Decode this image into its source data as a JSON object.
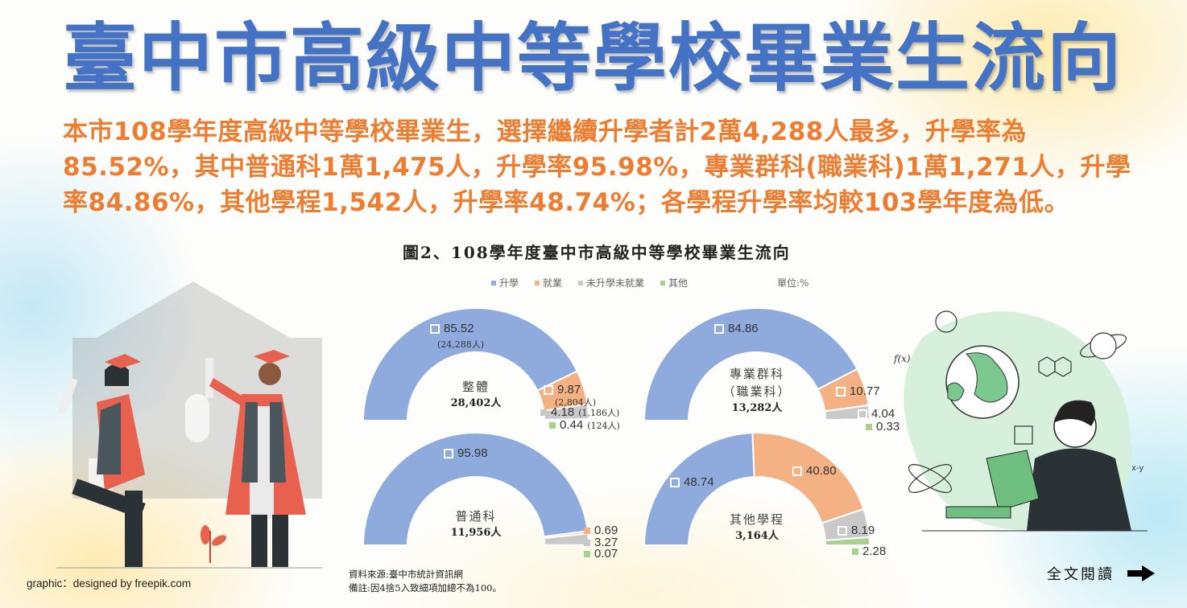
{
  "header": {
    "title": "臺中市高級中等學校畢業生流向"
  },
  "summary": {
    "text": "本市108學年度高級中等學校畢業生，選擇繼續升學者計2萬4,288人最多，升學率為85.52%，其中普通科1萬1,475人，升學率95.98%，專業群科(職業科)1萬1,271人，升學率84.86%，其他學程1,542人，升學率48.74%；各學程升學率均較103學年度為低。"
  },
  "figure": {
    "title": "圖2、108學年度臺中市高級中等學校畢業生流向",
    "unit": "單位:%",
    "legend": [
      {
        "label": "升學",
        "color": "#8faadc"
      },
      {
        "label": "就業",
        "color": "#f4b183"
      },
      {
        "label": "未升學未就業",
        "color": "#c9c9c9"
      },
      {
        "label": "其他",
        "color": "#a9d18e"
      }
    ],
    "source": "資料來源:臺中市統計資訊網",
    "note": "備註:因4捨5入致細項加總不為100。"
  },
  "chart_data": {
    "type": "pie",
    "subtype": "half-donut",
    "title": "圖2、108學年度臺中市高級中等學校畢業生流向",
    "unit": "%",
    "categories": [
      "升學",
      "就業",
      "未升學未就業",
      "其他"
    ],
    "colors": [
      "#8faadc",
      "#f4b183",
      "#c9c9c9",
      "#a9d18e"
    ],
    "legend_position": "top",
    "charts": [
      {
        "name": "整體",
        "total_label": "28,402人",
        "values": [
          85.52,
          9.87,
          4.18,
          0.44
        ],
        "counts": [
          "24,288人",
          "2,804人",
          "1,186人",
          "124人"
        ]
      },
      {
        "name": "專業群科（職業科）",
        "total_label": "13,282人",
        "values": [
          84.86,
          10.77,
          4.04,
          0.33
        ]
      },
      {
        "name": "普通科",
        "total_label": "11,956人",
        "values": [
          95.98,
          0.69,
          3.27,
          0.07
        ]
      },
      {
        "name": "其他學程",
        "total_label": "3,164人",
        "values": [
          48.74,
          40.8,
          8.19,
          2.28
        ]
      }
    ]
  },
  "donuts": [
    {
      "name_line1": "整體",
      "name_line2": "",
      "total": "28,402人",
      "labels": [
        "85.52",
        "9.87",
        "4.18",
        "0.44"
      ],
      "counts": [
        "(24,288人)",
        "(2,804人)",
        "(1,186人)",
        "(124人)"
      ]
    },
    {
      "name_line1": "專業群科",
      "name_line2": "（職業科）",
      "total": "13,282人",
      "labels": [
        "84.86",
        "10.77",
        "4.04",
        "0.33"
      ]
    },
    {
      "name_line1": "普通科",
      "name_line2": "",
      "total": "11,956人",
      "labels": [
        "95.98",
        "0.69",
        "3.27",
        "0.07"
      ]
    },
    {
      "name_line1": "其他學程",
      "name_line2": "",
      "total": "3,164人",
      "labels": [
        "48.74",
        "40.80",
        "8.19",
        "2.28"
      ]
    }
  ],
  "footer": {
    "credit": "graphic：designed by freepik.com",
    "read_more": "全文閱讀"
  },
  "icons": {
    "read_more_arrow": "right-arrow-icon"
  }
}
